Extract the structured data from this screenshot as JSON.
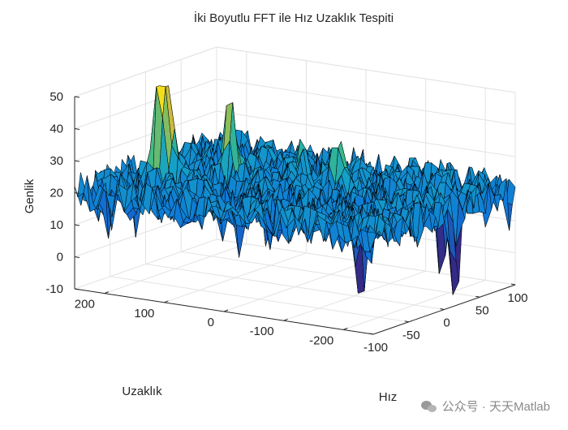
{
  "chart_data": {
    "type": "surface",
    "title": "İki Boyutlu FFT ile Hız Uzaklık Tespiti",
    "xlabel": "Hız",
    "ylabel": "Uzaklık",
    "zlabel": "Genlik",
    "xlim": [
      -100,
      100
    ],
    "ylim": [
      -250,
      250
    ],
    "zlim": [
      -10,
      50
    ],
    "x_ticks": [
      "-100",
      "-50",
      "0",
      "50",
      "100"
    ],
    "y_ticks": [
      "-200",
      "-100",
      "0",
      "100",
      "200"
    ],
    "z_ticks": [
      "-10",
      "0",
      "10",
      "20",
      "30",
      "40",
      "50"
    ],
    "grid": true,
    "colormap": "parula",
    "noise_floor": 20,
    "peaks": [
      {
        "x": -35,
        "y": 185,
        "z": 48
      },
      {
        "x": -30,
        "y": 175,
        "z": 40
      },
      {
        "x": 0,
        "y": 110,
        "z": 45
      },
      {
        "x": 10,
        "y": -60,
        "z": 33
      },
      {
        "x": 30,
        "y": 30,
        "z": 30
      },
      {
        "x": 25,
        "y": -15,
        "z": 25
      }
    ],
    "dips": [
      {
        "x": -25,
        "y": -140,
        "z": -8
      },
      {
        "x": 20,
        "y": -245,
        "z": -12
      },
      {
        "x": 55,
        "y": -180,
        "z": -3
      }
    ]
  },
  "watermark": "公众号 · 天天Matlab"
}
